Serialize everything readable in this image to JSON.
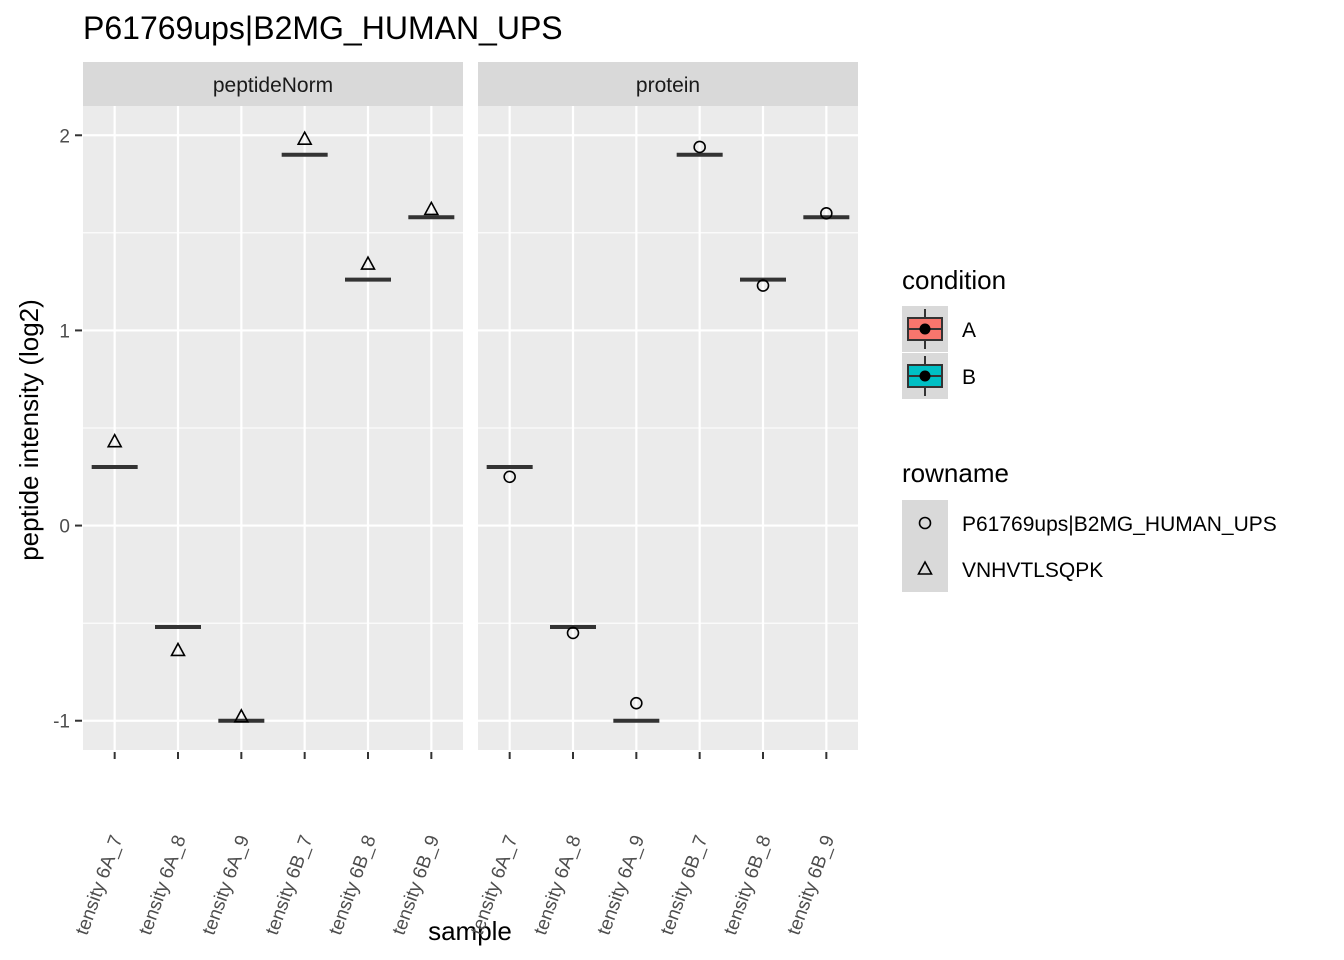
{
  "chart_data": {
    "type": "scatter",
    "title": "P61769ups|B2MG_HUMAN_UPS",
    "xlabel": "sample",
    "ylabel": "peptide intensity (log2)",
    "ylim": [
      -1.15,
      2.15
    ],
    "yticks": [
      "-1",
      "0",
      "1",
      "2"
    ],
    "categories": [
      "tensity 6A_7",
      "tensity 6A_8",
      "tensity 6A_9",
      "tensity 6B_7",
      "tensity 6B_8",
      "tensity 6B_9"
    ],
    "grid": true,
    "legend_position": "right",
    "colors": {
      "panel_bg": "#ebebeb",
      "strip_bg": "#d9d9d9",
      "grid": "#ffffff",
      "condition_A": "#f8766d",
      "condition_B": "#00bfc4"
    },
    "panels": [
      {
        "label": "peptideNorm",
        "medians": [
          0.3,
          -0.52,
          -1.0,
          1.9,
          1.26,
          1.58
        ],
        "series": [
          {
            "name": "VNHVTLSQPK",
            "shape": "triangle",
            "values": [
              0.43,
              -0.64,
              -0.98,
              1.98,
              1.34,
              1.62
            ]
          }
        ]
      },
      {
        "label": "protein",
        "medians": [
          0.3,
          -0.52,
          -1.0,
          1.9,
          1.26,
          1.58
        ],
        "series": [
          {
            "name": "P61769ups|B2MG_HUMAN_UPS",
            "shape": "circle",
            "values": [
              0.25,
              -0.55,
              -0.91,
              1.94,
              1.23,
              1.6
            ]
          }
        ]
      }
    ],
    "legends": [
      {
        "title": "condition",
        "entries": [
          {
            "label": "A",
            "color_key": "condition_A"
          },
          {
            "label": "B",
            "color_key": "condition_B"
          }
        ]
      },
      {
        "title": "rowname",
        "entries": [
          {
            "label": "P61769ups|B2MG_HUMAN_UPS",
            "shape": "circle"
          },
          {
            "label": "VNHVTLSQPK",
            "shape": "triangle"
          }
        ]
      }
    ]
  }
}
